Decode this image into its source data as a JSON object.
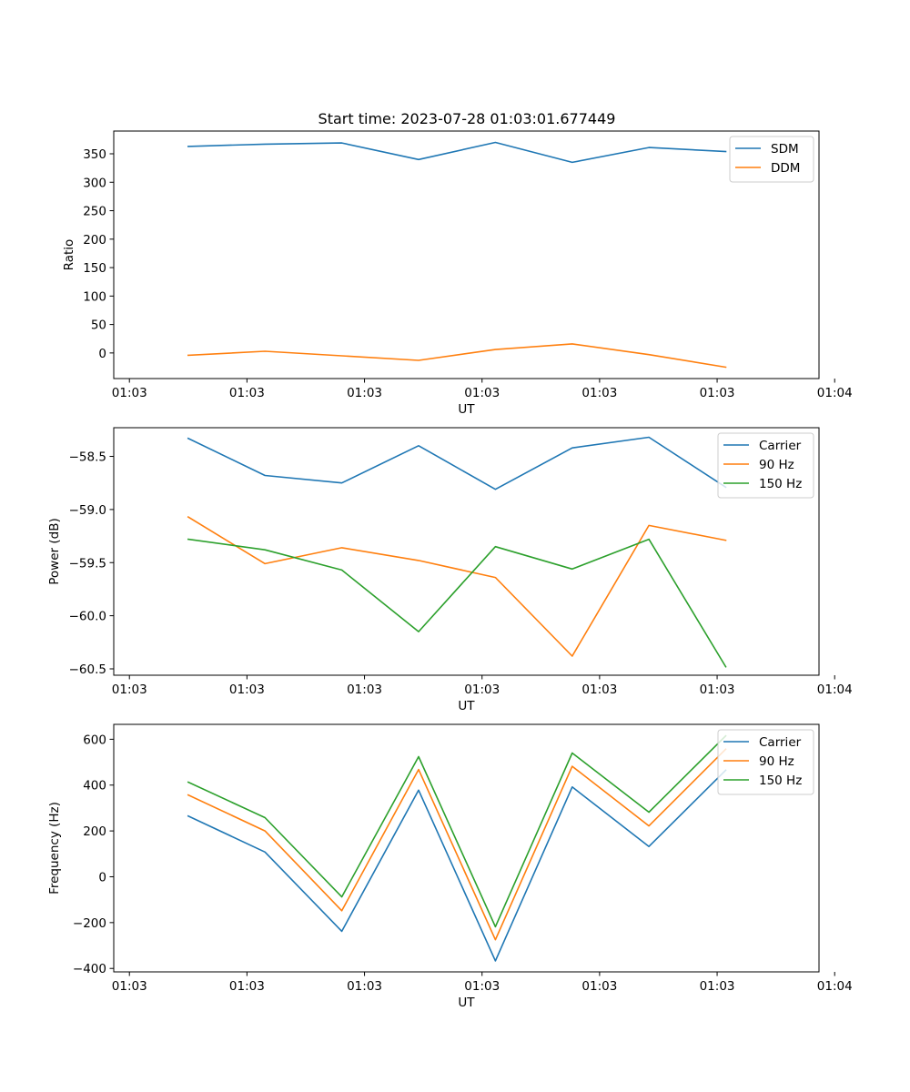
{
  "figure": {
    "title": "Start time: 2023-07-28 01:03:01.677449"
  },
  "chart_data": [
    {
      "type": "line",
      "xlabel": "UT",
      "ylabel": "Ratio",
      "xlim": [
        -0.2,
        8.8
      ],
      "ylim": [
        -45,
        390
      ],
      "x_tick_positions": [
        0,
        1.5,
        3,
        4.5,
        6,
        7.5,
        9
      ],
      "x_tick_labels": [
        "01:03",
        "01:03",
        "01:03",
        "01:03",
        "01:03",
        "01:03",
        "01:04"
      ],
      "y_ticks": [
        0,
        50,
        100,
        150,
        200,
        250,
        300,
        350
      ],
      "y_tick_labels": [
        "0",
        "50",
        "100",
        "150",
        "200",
        "250",
        "300",
        "350"
      ],
      "x": [
        0.75,
        1.73,
        2.71,
        3.69,
        4.67,
        5.65,
        6.63,
        7.61
      ],
      "legend_position": "upper right",
      "series": [
        {
          "name": "SDM",
          "color": "#1f77b4",
          "values": [
            363,
            367,
            369,
            340,
            370,
            335,
            361,
            354
          ]
        },
        {
          "name": "DDM",
          "color": "#ff7f0e",
          "values": [
            -4,
            3,
            -5,
            -13,
            6,
            16,
            -3,
            -25
          ]
        }
      ]
    },
    {
      "type": "line",
      "xlabel": "UT",
      "ylabel": "Power (dB)",
      "xlim": [
        -0.2,
        8.8
      ],
      "ylim": [
        -60.56,
        -58.23
      ],
      "x_tick_positions": [
        0,
        1.5,
        3,
        4.5,
        6,
        7.5,
        9
      ],
      "x_tick_labels": [
        "01:03",
        "01:03",
        "01:03",
        "01:03",
        "01:03",
        "01:03",
        "01:04"
      ],
      "y_ticks": [
        -60.5,
        -60.0,
        -59.5,
        -59.0,
        -58.5
      ],
      "y_tick_labels": [
        "−60.5",
        "−60.0",
        "−59.5",
        "−59.0",
        "−58.5"
      ],
      "x": [
        0.75,
        1.73,
        2.71,
        3.69,
        4.67,
        5.65,
        6.63,
        7.61
      ],
      "legend_position": "upper right",
      "series": [
        {
          "name": "Carrier",
          "color": "#1f77b4",
          "values": [
            -58.33,
            -58.68,
            -58.75,
            -58.4,
            -58.81,
            -58.42,
            -58.32,
            -58.79
          ]
        },
        {
          "name": "90 Hz",
          "color": "#ff7f0e",
          "values": [
            -59.07,
            -59.51,
            -59.36,
            -59.48,
            -59.64,
            -60.38,
            -59.15,
            -59.29
          ]
        },
        {
          "name": "150 Hz",
          "color": "#2ca02c",
          "values": [
            -59.28,
            -59.38,
            -59.57,
            -60.15,
            -59.35,
            -59.56,
            -59.28,
            -60.48
          ]
        }
      ]
    },
    {
      "type": "line",
      "xlabel": "UT",
      "ylabel": "Frequency (Hz)",
      "xlim": [
        -0.2,
        8.8
      ],
      "ylim": [
        -415,
        665
      ],
      "x_tick_positions": [
        0,
        1.5,
        3,
        4.5,
        6,
        7.5,
        9
      ],
      "x_tick_labels": [
        "01:03",
        "01:03",
        "01:03",
        "01:03",
        "01:03",
        "01:03",
        "01:04"
      ],
      "y_ticks": [
        -400,
        -200,
        0,
        200,
        400,
        600
      ],
      "y_tick_labels": [
        "−400",
        "−200",
        "0",
        "200",
        "400",
        "600"
      ],
      "x": [
        0.75,
        1.73,
        2.71,
        3.69,
        4.67,
        5.65,
        6.63,
        7.61
      ],
      "legend_position": "upper right",
      "series": [
        {
          "name": "Carrier",
          "color": "#1f77b4",
          "values": [
            265,
            108,
            -238,
            378,
            -367,
            392,
            132,
            465
          ]
        },
        {
          "name": "90 Hz",
          "color": "#ff7f0e",
          "values": [
            357,
            200,
            -148,
            468,
            -275,
            482,
            222,
            557
          ]
        },
        {
          "name": "150 Hz",
          "color": "#2ca02c",
          "values": [
            413,
            258,
            -88,
            524,
            -218,
            540,
            282,
            615
          ]
        }
      ]
    }
  ]
}
